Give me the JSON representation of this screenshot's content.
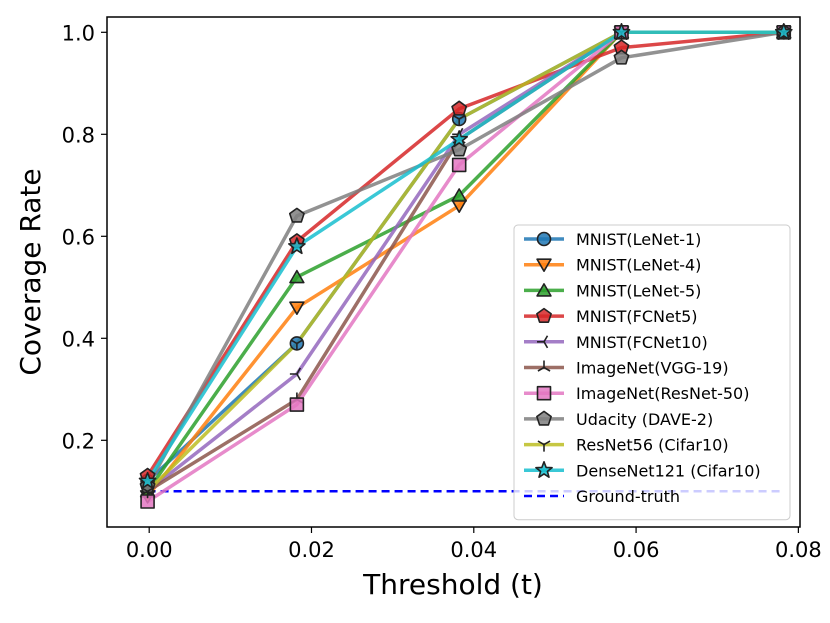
{
  "chart_data": {
    "type": "line",
    "title": "",
    "xlabel": "Threshold (t)",
    "ylabel": "Coverage Rate",
    "xlim": [
      -0.0052,
      0.0802
    ],
    "ylim": [
      0.03,
      1.03
    ],
    "x_ticks": [
      0.0,
      0.02,
      0.04,
      0.06,
      0.08
    ],
    "x_tick_labels": [
      "0.00",
      "0.02",
      "0.04",
      "0.06",
      "0.08"
    ],
    "y_ticks": [
      0.2,
      0.4,
      0.6,
      0.8,
      1.0
    ],
    "y_tick_labels": [
      "0.2",
      "0.4",
      "0.6",
      "0.8",
      "1.0"
    ],
    "grid": false,
    "legend_position": "lower-right",
    "x": [
      -0.0002,
      0.0182,
      0.0382,
      0.0582,
      0.0782
    ],
    "series": [
      {
        "name": "MNIST(LeNet-1)",
        "values": [
          0.12,
          0.39,
          0.83,
          1.0,
          1.0
        ],
        "color": "#1f77b4",
        "marker": "circle"
      },
      {
        "name": "MNIST(LeNet-4)",
        "values": [
          0.09,
          0.46,
          0.66,
          1.0,
          1.0
        ],
        "color": "#ff7f0e",
        "marker": "triangle-down"
      },
      {
        "name": "MNIST(LeNet-5)",
        "values": [
          0.1,
          0.52,
          0.68,
          1.0,
          1.0
        ],
        "color": "#2ca02c",
        "marker": "triangle-up"
      },
      {
        "name": "MNIST(FCNet5)",
        "values": [
          0.13,
          0.59,
          0.85,
          0.97,
          1.0
        ],
        "color": "#d62728",
        "marker": "pentagon"
      },
      {
        "name": "MNIST(FCNet10)",
        "values": [
          0.1,
          0.33,
          0.8,
          1.0,
          1.0
        ],
        "color": "#9467bd",
        "marker": "tri-left"
      },
      {
        "name": "ImageNet(VGG-19)",
        "values": [
          0.1,
          0.28,
          0.79,
          1.0,
          1.0
        ],
        "color": "#8c564b",
        "marker": "tri-up"
      },
      {
        "name": "ImageNet(ResNet-50)",
        "values": [
          0.08,
          0.27,
          0.74,
          1.0,
          1.0
        ],
        "color": "#e377c2",
        "marker": "square"
      },
      {
        "name": "Udacity (DAVE-2)",
        "values": [
          0.11,
          0.64,
          0.77,
          0.95,
          1.0
        ],
        "color": "#7f7f7f",
        "marker": "hexagon"
      },
      {
        "name": "ResNet56 (Cifar10)",
        "values": [
          0.1,
          0.39,
          0.83,
          1.0,
          1.0
        ],
        "color": "#bcbd22",
        "marker": "tri-down"
      },
      {
        "name": "DenseNet121 (Cifar10)",
        "values": [
          0.12,
          0.58,
          0.79,
          1.0,
          1.0
        ],
        "color": "#17becf",
        "marker": "star"
      }
    ],
    "reference_line": {
      "name": "Ground-truth",
      "y": 0.1,
      "x_range": [
        -0.0002,
        0.0782
      ],
      "color": "#0000ff",
      "style": "dashed"
    }
  }
}
